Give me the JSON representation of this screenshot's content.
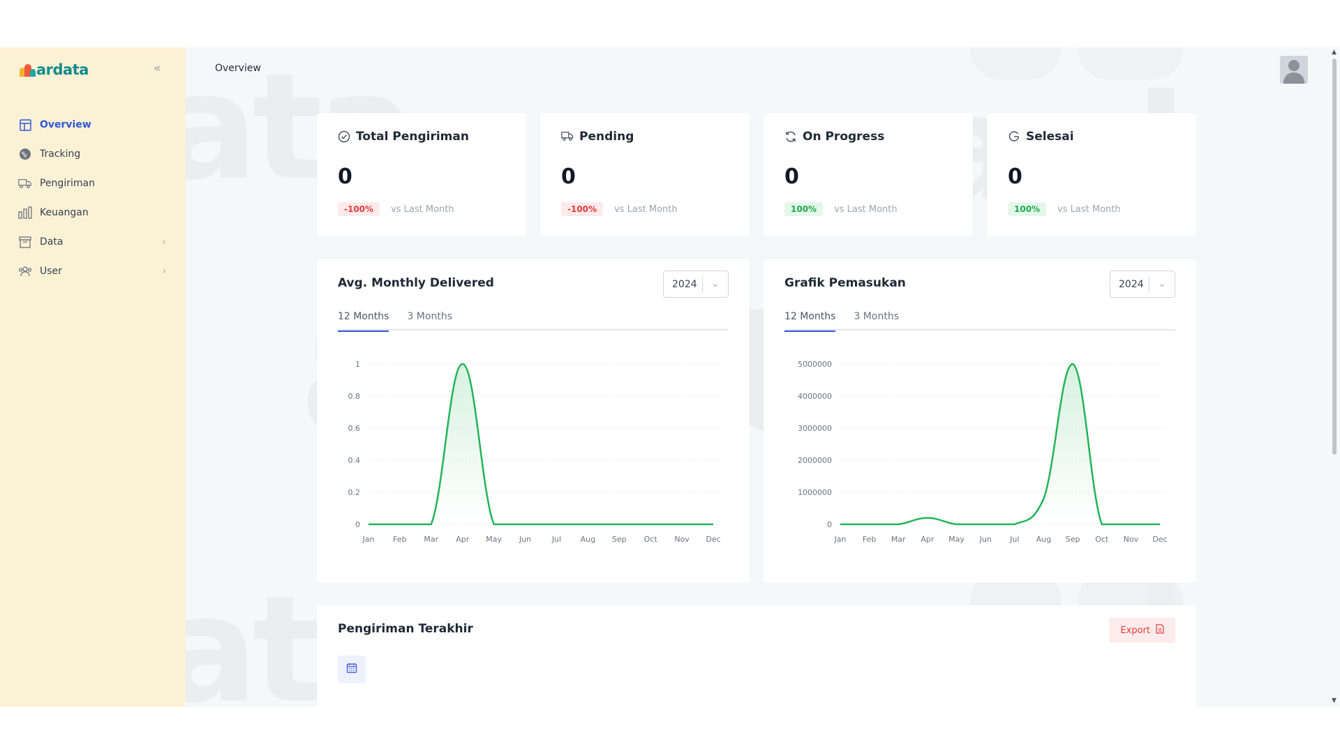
{
  "app": {
    "logo_text": "ardata",
    "page_title": "Overview"
  },
  "sidebar": {
    "items": [
      {
        "label": "Overview",
        "icon": "grid-icon",
        "active": true
      },
      {
        "label": "Tracking",
        "icon": "globe-icon"
      },
      {
        "label": "Pengiriman",
        "icon": "truck-icon"
      },
      {
        "label": "Keuangan",
        "icon": "bar-chart-icon"
      },
      {
        "label": "Data",
        "icon": "archive-icon",
        "has_children": true
      },
      {
        "label": "User",
        "icon": "users-icon",
        "has_children": true
      }
    ]
  },
  "stats": [
    {
      "title": "Total Pengiriman",
      "icon": "check-circle-icon",
      "value": "0",
      "change": "-100%",
      "trend": "down",
      "caption": "vs Last Month"
    },
    {
      "title": "Pending",
      "icon": "truck-icon",
      "value": "0",
      "change": "-100%",
      "trend": "down",
      "caption": "vs Last Month"
    },
    {
      "title": "On Progress",
      "icon": "refresh-icon",
      "value": "0",
      "change": "100%",
      "trend": "up",
      "caption": "vs Last Month"
    },
    {
      "title": "Selesai",
      "icon": "arrow-circle-icon",
      "value": "0",
      "change": "100%",
      "trend": "up",
      "caption": "vs Last Month"
    }
  ],
  "colors": {
    "accent": "#2f56d6",
    "line": "#22b457",
    "danger": "#e23b3b",
    "success": "#1faa4b",
    "sidebar_bg": "#fbf1d5"
  },
  "charts": [
    {
      "title": "Avg. Monthly Delivered",
      "year": "2024",
      "tabs": [
        "12 Months",
        "3 Months"
      ],
      "active_tab": 0
    },
    {
      "title": "Grafik Pemasukan",
      "year": "2024",
      "tabs": [
        "12 Months",
        "3 Months"
      ],
      "active_tab": 0
    }
  ],
  "chart_data": [
    {
      "type": "line",
      "categories": [
        "Jan",
        "Feb",
        "Mar",
        "Apr",
        "May",
        "Jun",
        "Jul",
        "Aug",
        "Sep",
        "Oct",
        "Nov",
        "Dec"
      ],
      "values": [
        0,
        0,
        0,
        1,
        0,
        0,
        0,
        0,
        0,
        0,
        0,
        0
      ],
      "ylim": [
        0,
        1
      ],
      "yticks": [
        "0",
        "0.2",
        "0.4",
        "0.6",
        "0.8",
        "1"
      ],
      "grid": true
    },
    {
      "type": "line",
      "categories": [
        "Jan",
        "Feb",
        "Mar",
        "Apr",
        "May",
        "Jun",
        "Jul",
        "Aug",
        "Sep",
        "Oct",
        "Nov",
        "Dec"
      ],
      "values": [
        0,
        0,
        0,
        200000,
        0,
        0,
        0,
        800000,
        5000000,
        0,
        0,
        0
      ],
      "ylim": [
        0,
        5000000
      ],
      "yticks": [
        "0",
        "1000000",
        "2000000",
        "3000000",
        "4000000",
        "5000000"
      ],
      "grid": true
    }
  ],
  "recent": {
    "title": "Pengiriman Terakhir",
    "export_label": "Export"
  }
}
